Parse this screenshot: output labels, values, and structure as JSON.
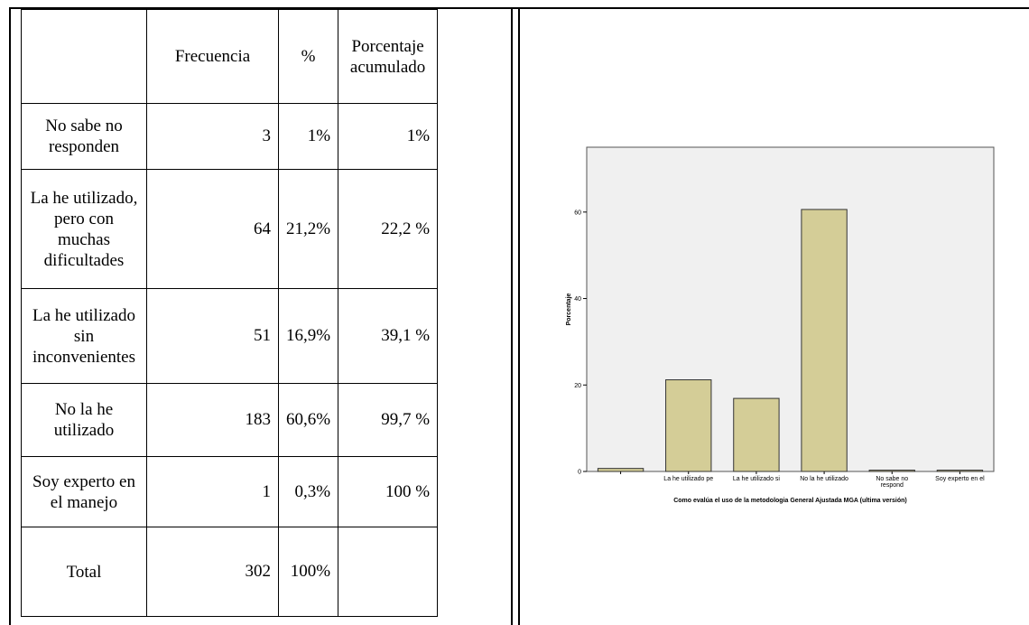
{
  "table": {
    "headers": [
      "",
      "Frecuencia",
      "%",
      "Porcentaje acumulado"
    ],
    "rows": [
      {
        "label": "No sabe no responden",
        "freq": "3",
        "pct": "1%",
        "cum": "1%"
      },
      {
        "label": "La he utilizado, pero con muchas dificultades",
        "freq": "64",
        "pct": "21,2%",
        "cum": "22,2 %"
      },
      {
        "label": "La he utilizado sin inconvenientes",
        "freq": "51",
        "pct": "16,9%",
        "cum": "39,1 %"
      },
      {
        "label": "No la he utilizado",
        "freq": "183",
        "pct": "60,6%",
        "cum": "99,7 %"
      },
      {
        "label": "Soy experto en el manejo",
        "freq": "1",
        "pct": "0,3%",
        "cum": "100 %"
      },
      {
        "label": "Total",
        "freq": "302",
        "pct": "100%",
        "cum": ""
      }
    ]
  },
  "chart_data": {
    "type": "bar",
    "categories": [
      "",
      "La he utilizado pe",
      "La he utilizado si",
      "No la he utilizado",
      "No sabe no respond",
      "Soy experto en el"
    ],
    "values": [
      0.7,
      21.2,
      16.9,
      60.6,
      0.3,
      0.3
    ],
    "ylabel": "Porcentaje",
    "xlabel": "Como evalúa el uso de la metodologia General Ajustada MGA (ultima versión)",
    "yticks": [
      0,
      20,
      40,
      60
    ],
    "ylim": [
      0,
      75
    ],
    "bar_color": "#d4cd97",
    "plot_bg": "#f0f0f0"
  }
}
